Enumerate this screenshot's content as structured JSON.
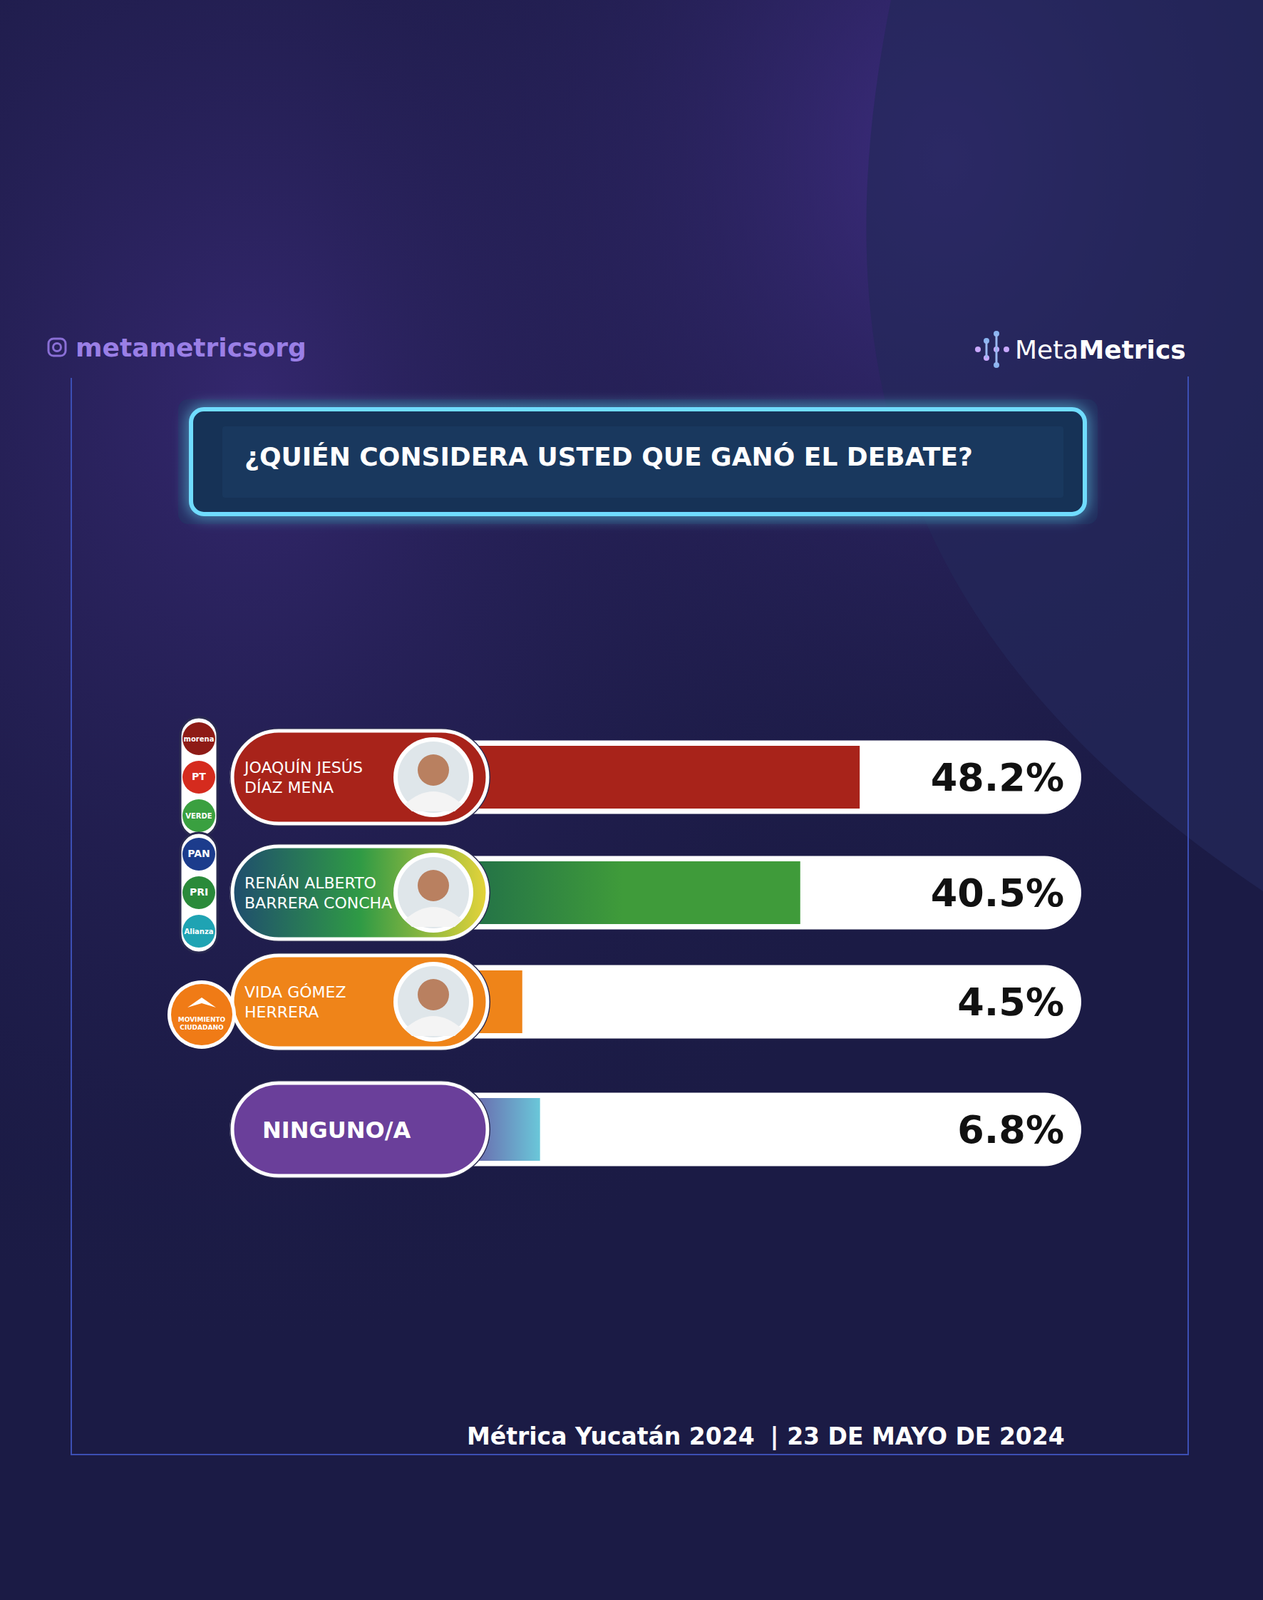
{
  "chart_data": {
    "type": "bar",
    "orientation": "horizontal",
    "title": "¿QUIÉN CONSIDERA USTED QUE GANÓ EL DEBATE?",
    "categories": [
      "JOAQUÍN JESÚS DÍAZ MENA",
      "RENÁN ALBERTO BARRERA CONCHA",
      "VIDA GÓMEZ HERRERA",
      "NINGUNO/A"
    ],
    "values": [
      48.2,
      40.5,
      4.5,
      6.8
    ],
    "value_labels": [
      "48.2%",
      "40.5%",
      "4.5%",
      "6.8%"
    ],
    "colors": [
      "#a8231a",
      "#3f9b3a",
      "#ef8419",
      "#6ac7d9"
    ],
    "xlim": [
      0,
      60
    ],
    "data_labels": true,
    "tick_labels": false,
    "grid": false
  },
  "header": {
    "handle": "metametricsorg",
    "brand_light": "Meta",
    "brand_bold": "Metrics"
  },
  "party_logos": [
    [
      {
        "text": "morena",
        "color": "#8e1b16"
      },
      {
        "text": "PT",
        "color": "#d52b1e"
      },
      {
        "text": "VERDE",
        "color": "#3aa040"
      }
    ],
    [
      {
        "text": "PAN",
        "color": "#1c3c8c"
      },
      {
        "text": "PRI",
        "color": "#2a8a3a"
      },
      {
        "text": "Alianza",
        "color": "#1fa3b3"
      }
    ],
    [
      {
        "text": "MOVIMIENTO CIUDADANO",
        "color": "#f07b16"
      }
    ],
    []
  ],
  "footer": {
    "source": "Métrica Yucatán 2024",
    "date": "| 23 DE MAYO DE 2024"
  }
}
